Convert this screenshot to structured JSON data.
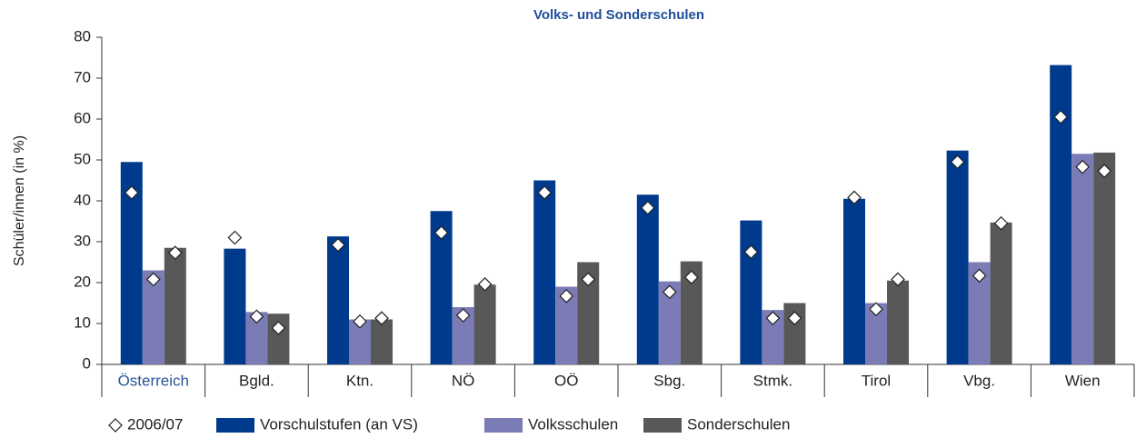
{
  "chart_data": {
    "type": "bar",
    "title": "Volks- und Sonderschulen",
    "y_label": "Schüler/innen (in %)",
    "categories": [
      "Österreich",
      "Bgld.",
      "Ktn.",
      "NÖ",
      "OÖ",
      "Sbg.",
      "Stmk.",
      "Tirol",
      "Vbg.",
      "Wien"
    ],
    "highlight_category_index": 0,
    "highlight_color": "#2a5597",
    "series": [
      {
        "name": "Vorschulstufen (an VS)",
        "color": "#003a8c",
        "values": [
          49.5,
          28.3,
          31.3,
          37.5,
          45,
          41.5,
          35.2,
          40.5,
          52.3,
          73.2
        ]
      },
      {
        "name": "Volksschulen",
        "color": "#7b7bb5",
        "values": [
          23,
          12.8,
          11,
          14,
          19,
          20.3,
          13.3,
          15,
          25,
          51.5
        ]
      },
      {
        "name": "Sonderschulen",
        "color": "#585858",
        "values": [
          28.5,
          12.4,
          11,
          19.5,
          25,
          25.2,
          15,
          20.5,
          34.7,
          51.8
        ]
      }
    ],
    "reference": {
      "name": "2006/07",
      "values_by_series": [
        [
          42,
          31,
          29.2,
          32.2,
          42,
          38.3,
          27.5,
          40.8,
          49.5,
          60.5
        ],
        [
          20.8,
          11.7,
          10.5,
          12,
          16.7,
          17.7,
          11.3,
          13.5,
          21.7,
          48.3
        ],
        [
          27.3,
          8.9,
          11.3,
          19.6,
          20.8,
          21.3,
          11.3,
          20.8,
          34.5,
          47.3
        ]
      ]
    },
    "ylim": [
      0,
      80
    ],
    "yticks": [
      0,
      10,
      20,
      30,
      40,
      50,
      60,
      70,
      80
    ],
    "grid": false
  }
}
